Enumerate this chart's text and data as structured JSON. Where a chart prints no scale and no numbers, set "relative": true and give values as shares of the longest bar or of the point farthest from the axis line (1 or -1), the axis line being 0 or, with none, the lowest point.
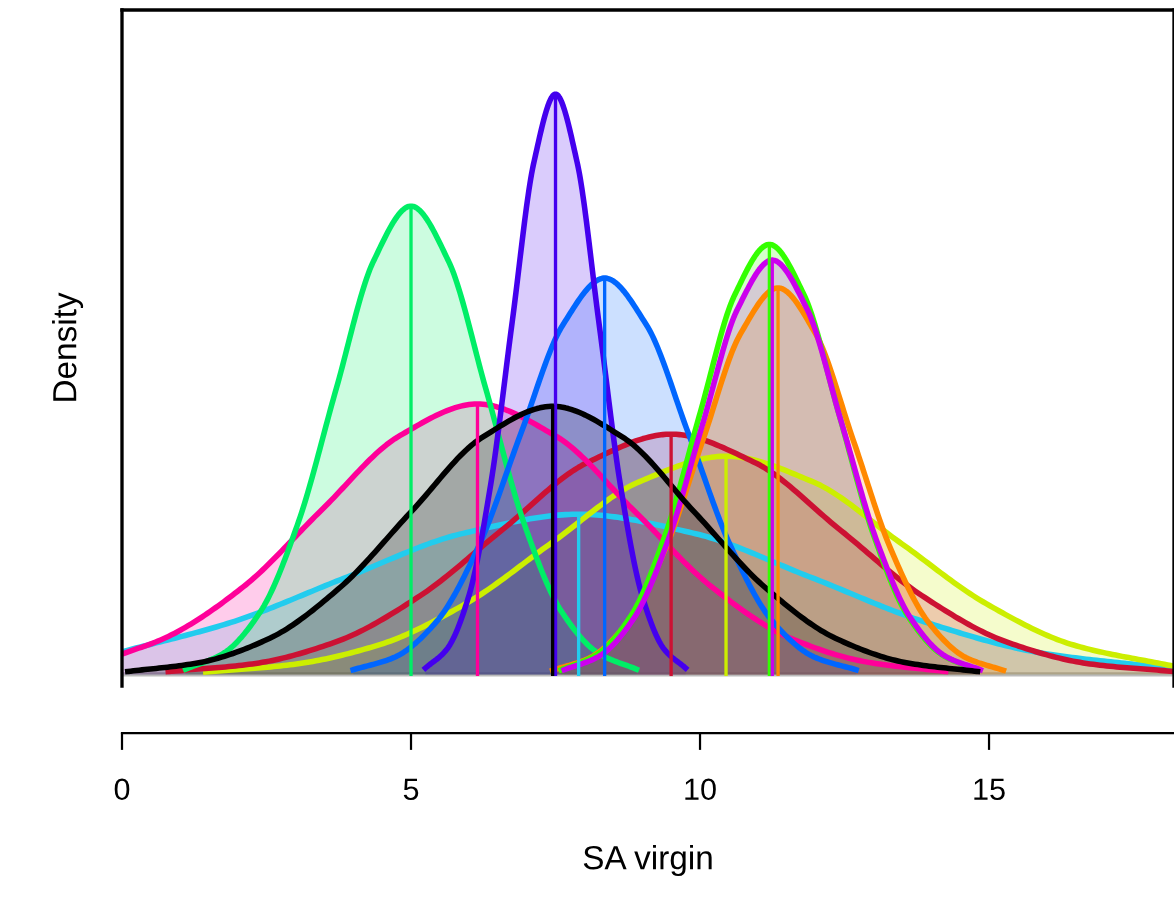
{
  "chart_data": {
    "type": "area",
    "relative": true,
    "xlabel": "SA virgin",
    "ylabel": "Density",
    "xlim": [
      0,
      18.2
    ],
    "xticks": [
      0,
      5,
      10,
      15
    ],
    "tick_labels": "x",
    "grid": false,
    "legend": false,
    "series": [
      {
        "color": "#22ccee",
        "x": [
          0,
          1.9,
          3.9,
          5.9,
          7.9,
          9.9,
          11.9,
          13.9,
          15.9,
          18.2
        ],
        "values": [
          0.039,
          0.09,
          0.168,
          0.243,
          0.276,
          0.243,
          0.168,
          0.09,
          0.037,
          0.01
        ]
      },
      {
        "color": "#ccee00",
        "x": [
          1.45,
          2.95,
          4.45,
          5.95,
          7.45,
          8.95,
          10.45,
          11.95,
          13.45,
          14.95,
          16.45,
          18.2
        ],
        "values": [
          0.004,
          0.017,
          0.051,
          0.122,
          0.228,
          0.332,
          0.376,
          0.332,
          0.228,
          0.122,
          0.051,
          0.014
        ]
      },
      {
        "color": "#cc1133",
        "x": [
          0.8,
          2.25,
          3.7,
          5.15,
          6.6,
          8.05,
          9.5,
          10.95,
          12.4,
          13.85,
          15.3,
          16.75,
          18.2
        ],
        "values": [
          0.005,
          0.018,
          0.056,
          0.135,
          0.251,
          0.365,
          0.414,
          0.365,
          0.251,
          0.135,
          0.056,
          0.018,
          0.005
        ]
      },
      {
        "color": "#ff0099",
        "x": [
          0,
          0.75,
          2.1,
          3.45,
          4.8,
          6.15,
          7.5,
          8.85,
          10.2,
          11.55,
          12.9,
          14.25
        ],
        "values": [
          0.035,
          0.063,
          0.151,
          0.283,
          0.411,
          0.466,
          0.411,
          0.283,
          0.151,
          0.063,
          0.021,
          0.005
        ]
      },
      {
        "color": "#00ee66",
        "x": [
          1.1,
          1.75,
          2.4,
          3.05,
          3.7,
          4.35,
          5,
          5.65,
          6.3,
          6.95,
          7.6,
          8.25,
          8.9
        ],
        "values": [
          0.009,
          0.036,
          0.109,
          0.262,
          0.49,
          0.712,
          0.807,
          0.712,
          0.49,
          0.262,
          0.109,
          0.036,
          0.009
        ]
      },
      {
        "color": "#0066ff",
        "x": [
          4.0,
          4.725,
          5.45,
          6.175,
          6.9,
          7.625,
          8.35,
          9.075,
          9.8,
          10.525,
          11.25,
          11.975,
          12.7
        ],
        "values": [
          0.008,
          0.03,
          0.092,
          0.222,
          0.415,
          0.602,
          0.683,
          0.602,
          0.415,
          0.222,
          0.092,
          0.03,
          0.008
        ]
      },
      {
        "color": "#4400ee",
        "x": [
          5.25,
          5.625,
          6.0,
          6.375,
          6.75,
          7.125,
          7.5,
          7.875,
          8.25,
          8.625,
          9.0,
          9.375,
          9.75
        ],
        "values": [
          0.011,
          0.044,
          0.135,
          0.325,
          0.607,
          0.882,
          1.0,
          0.882,
          0.607,
          0.325,
          0.135,
          0.044,
          0.011
        ]
      },
      {
        "color": "#ff8800",
        "x": [
          7.45,
          8.1,
          8.75,
          9.4,
          10.05,
          10.7,
          11.35,
          12.0,
          12.65,
          13.3,
          13.95,
          14.6,
          15.25
        ],
        "values": [
          0.007,
          0.029,
          0.09,
          0.216,
          0.404,
          0.587,
          0.666,
          0.587,
          0.404,
          0.216,
          0.09,
          0.029,
          0.007
        ]
      },
      {
        "color": "#33ff00",
        "x": [
          7.6,
          8.2,
          8.8,
          9.4,
          10.0,
          10.6,
          11.2,
          11.8,
          12.4,
          13.0,
          13.6,
          14.2,
          14.8
        ],
        "values": [
          0.008,
          0.033,
          0.1,
          0.241,
          0.45,
          0.654,
          0.741,
          0.654,
          0.45,
          0.241,
          0.1,
          0.033,
          0.008
        ]
      },
      {
        "color": "#cc00ee",
        "x": [
          7.65,
          8.25,
          8.85,
          9.45,
          10.05,
          10.65,
          11.25,
          11.85,
          12.45,
          13.05,
          13.65,
          14.25,
          14.85
        ],
        "values": [
          0.008,
          0.031,
          0.096,
          0.232,
          0.433,
          0.63,
          0.714,
          0.63,
          0.433,
          0.232,
          0.096,
          0.031,
          0.008
        ]
      },
      {
        "color": "#000000",
        "x": [
          0.1,
          1.325,
          2.55,
          3.775,
          5.0,
          6.225,
          7.45,
          8.675,
          9.9,
          11.125,
          12.35,
          13.575,
          14.8
        ],
        "values": [
          0.005,
          0.02,
          0.062,
          0.15,
          0.28,
          0.408,
          0.462,
          0.408,
          0.28,
          0.15,
          0.062,
          0.02,
          0.005
        ]
      }
    ],
    "ref_lines": [
      {
        "axis": "x",
        "value": 7.9,
        "color": "#22ccee"
      },
      {
        "axis": "x",
        "value": 10.45,
        "color": "#ccee00"
      },
      {
        "axis": "x",
        "value": 9.5,
        "color": "#cc1133"
      },
      {
        "axis": "x",
        "value": 6.15,
        "color": "#ff0099"
      },
      {
        "axis": "x",
        "value": 5,
        "color": "#00ee66"
      },
      {
        "axis": "x",
        "value": 8.35,
        "color": "#0066ff"
      },
      {
        "axis": "x",
        "value": 7.5,
        "color": "#4400ee"
      },
      {
        "axis": "x",
        "value": 11.35,
        "color": "#ff8800"
      },
      {
        "axis": "x",
        "value": 11.2,
        "color": "#33ff00"
      },
      {
        "axis": "x",
        "value": 11.25,
        "color": "#cc00ee"
      },
      {
        "axis": "x",
        "value": 7.45,
        "color": "#000000"
      }
    ]
  }
}
